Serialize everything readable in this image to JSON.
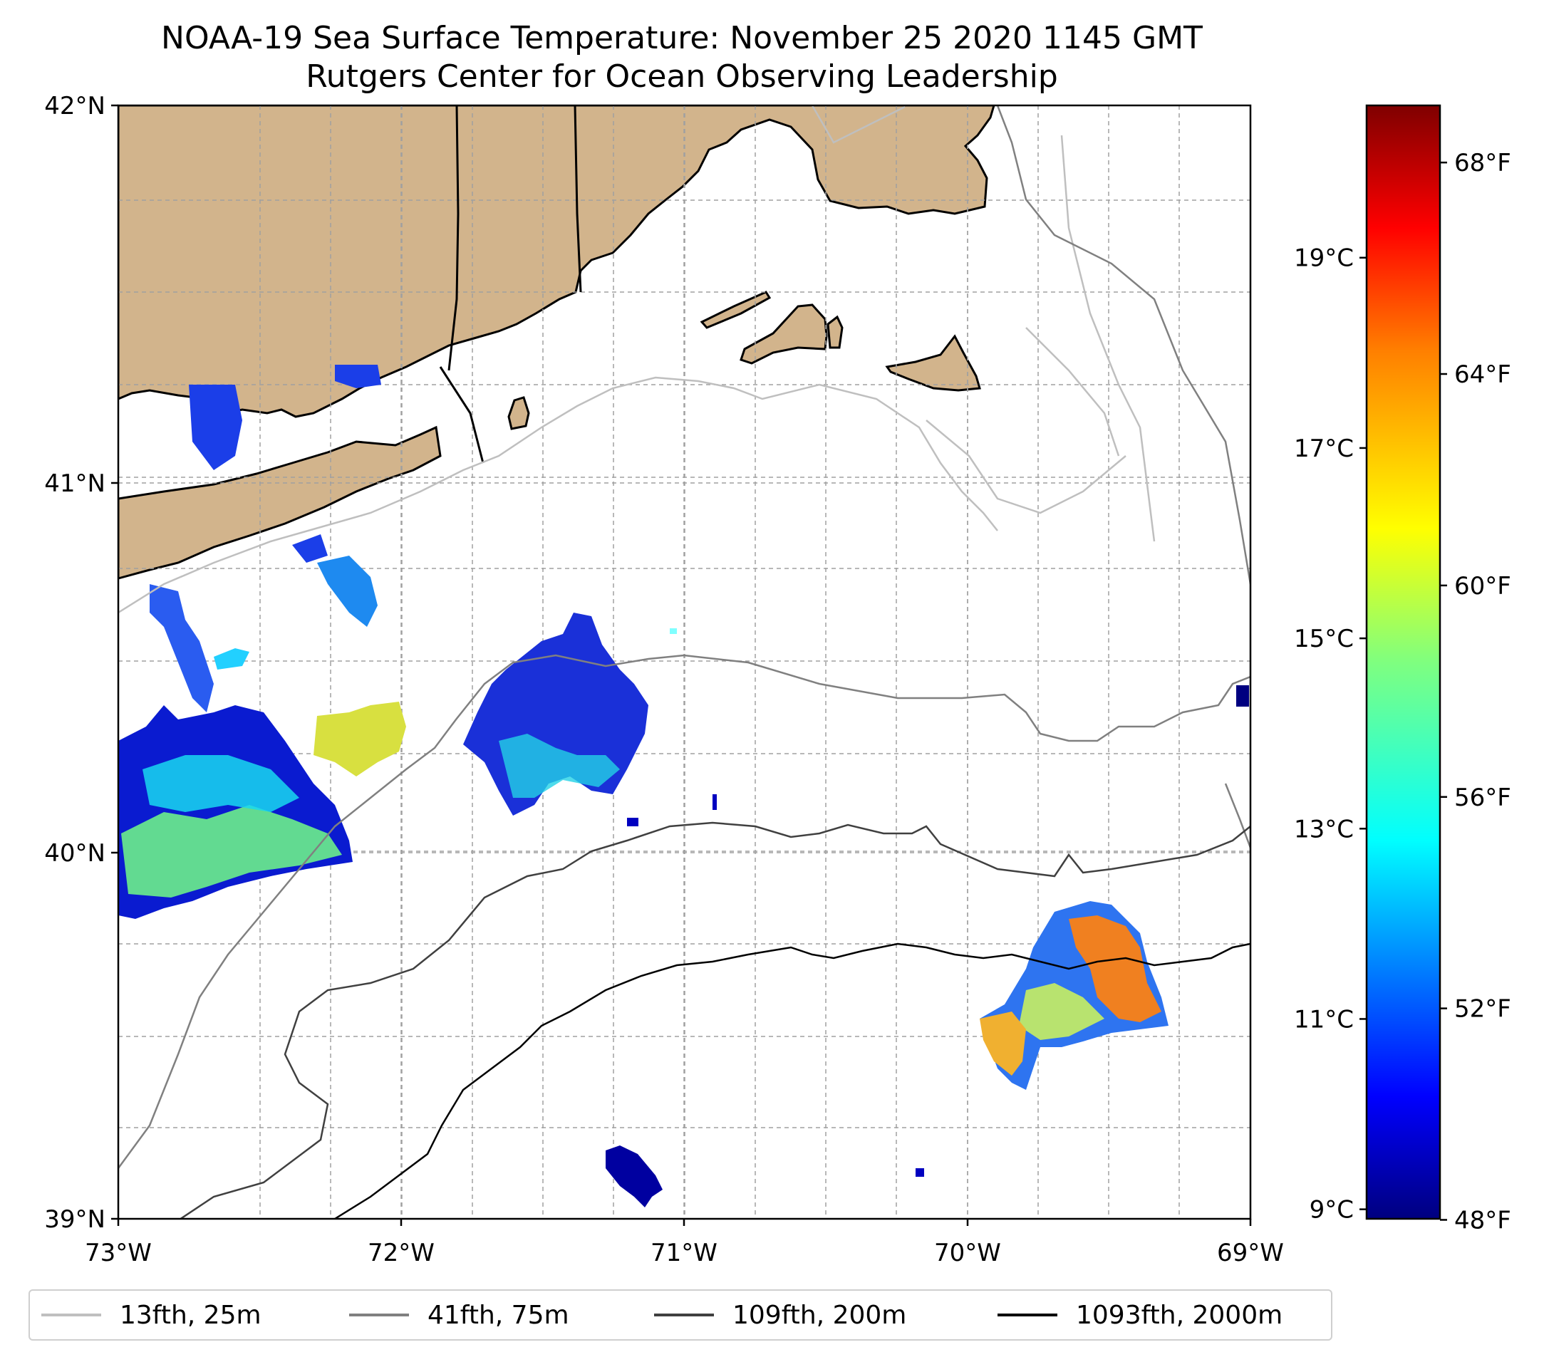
{
  "title": {
    "line1": "NOAA-19 Sea Surface Temperature: November 25 2020 1145 GMT",
    "line2": "Rutgers Center for Ocean Observing Leadership"
  },
  "map": {
    "lon_labels": [
      "73°W",
      "72°W",
      "71°W",
      "70°W",
      "69°W"
    ],
    "lat_labels": [
      "42°N",
      "41°N",
      "40°N",
      "39°N"
    ],
    "land_color": "#d2b48c",
    "extent": {
      "lon": [
        -73,
        -69
      ],
      "lat": [
        39,
        42
      ]
    }
  },
  "colorbar": {
    "range_c": [
      8.9,
      20.6
    ],
    "celsius_ticks": [
      {
        "value": 9,
        "label": "9°C"
      },
      {
        "value": 11,
        "label": "11°C"
      },
      {
        "value": 13,
        "label": "13°C"
      },
      {
        "value": 15,
        "label": "15°C"
      },
      {
        "value": 17,
        "label": "17°C"
      },
      {
        "value": 19,
        "label": "19°C"
      }
    ],
    "fahrenheit_ticks": [
      {
        "value": 48,
        "label": "48°F"
      },
      {
        "value": 52,
        "label": "52°F"
      },
      {
        "value": 56,
        "label": "56°F"
      },
      {
        "value": 60,
        "label": "60°F"
      },
      {
        "value": 64,
        "label": "64°F"
      },
      {
        "value": 68,
        "label": "68°F"
      }
    ],
    "colormap": [
      "#00007f",
      "#0000ff",
      "#007fff",
      "#00ffff",
      "#7fff7f",
      "#ffff00",
      "#ff7f00",
      "#ff0000",
      "#7f0000"
    ]
  },
  "legend": [
    {
      "label": "13fth, 25m",
      "color": "#bfbfbf"
    },
    {
      "label": "41fth, 75m",
      "color": "#808080"
    },
    {
      "label": "109fth, 200m",
      "color": "#404040"
    },
    {
      "label": "1093fth, 2000m",
      "color": "#000000"
    }
  ]
}
